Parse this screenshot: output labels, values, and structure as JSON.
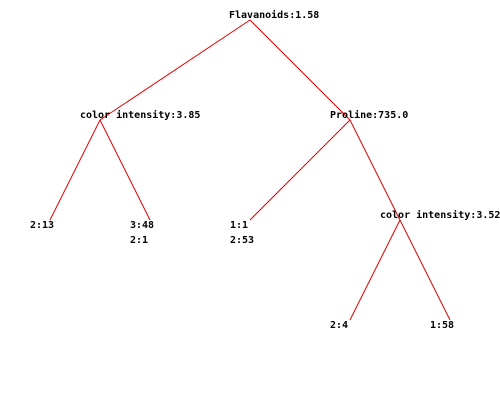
{
  "colors": {
    "edge": "#e00000",
    "text": "#000000",
    "background": "#ffffff"
  },
  "tree": {
    "root": {
      "id": "root",
      "label": "Flavanoids:1.58",
      "children": [
        "n_ci1",
        "n_pro"
      ]
    },
    "nodes": {
      "n_ci1": {
        "label": "color intensity:3.85",
        "children": [
          "leaf_a",
          "leaf_b"
        ]
      },
      "n_pro": {
        "label": "Proline:735.0",
        "children": [
          "leaf_c",
          "n_ci2"
        ]
      },
      "n_ci2": {
        "label": "color intensity:3.52",
        "children": [
          "leaf_d",
          "leaf_e"
        ]
      }
    },
    "leaves": {
      "leaf_a": {
        "lines": [
          "2:13"
        ]
      },
      "leaf_b": {
        "lines": [
          "3:48",
          "2:1"
        ]
      },
      "leaf_c": {
        "lines": [
          "1:1",
          "2:53"
        ]
      },
      "leaf_d": {
        "lines": [
          "2:4"
        ]
      },
      "leaf_e": {
        "lines": [
          "1:58"
        ]
      }
    }
  }
}
